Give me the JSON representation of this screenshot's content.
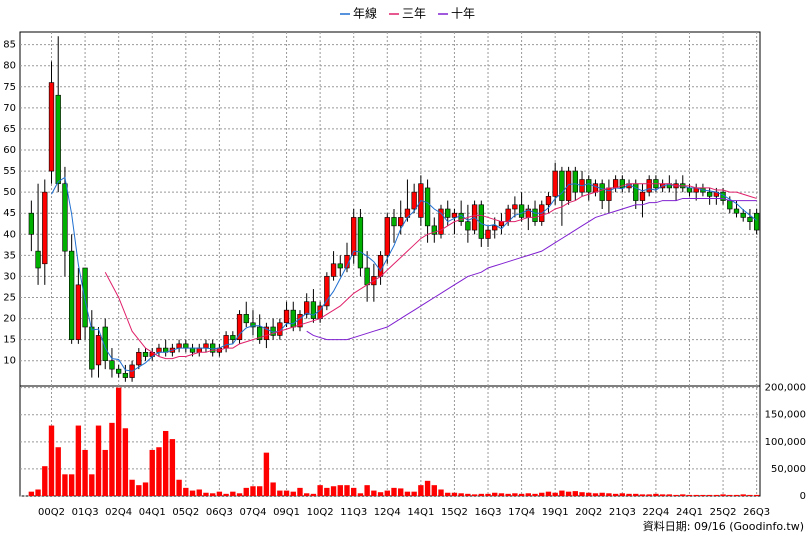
{
  "chart_data": {
    "type": "candlestick",
    "legend": "top",
    "grid": true,
    "up_color": "#ff0000",
    "down_color": "#00b000",
    "footer": "資料日期: 09/16 (Goodinfo.tw)",
    "categories": [
      null,
      null,
      null,
      "00Q2",
      null,
      null,
      null,
      null,
      "01Q3",
      null,
      null,
      null,
      null,
      "02Q4",
      null,
      null,
      null,
      null,
      "04Q1",
      null,
      null,
      null,
      null,
      "05Q2",
      null,
      null,
      null,
      null,
      "06Q3",
      null,
      null,
      null,
      null,
      "07Q4",
      null,
      null,
      null,
      null,
      "09Q1",
      null,
      null,
      null,
      null,
      "10Q2",
      null,
      null,
      null,
      null,
      "11Q3",
      null,
      null,
      null,
      null,
      "12Q4",
      null,
      null,
      null,
      null,
      "14Q1",
      null,
      null,
      null,
      null,
      "15Q2",
      null,
      null,
      null,
      null,
      "16Q3",
      null,
      null,
      null,
      null,
      "17Q4",
      null,
      null,
      null,
      null,
      "19Q1",
      null,
      null,
      null,
      null,
      "20Q2",
      null,
      null,
      null,
      null,
      "21Q3",
      null,
      null,
      null,
      null,
      "22Q4",
      null,
      null,
      null,
      null,
      "24Q1",
      null,
      null,
      null,
      null,
      "25Q2",
      null,
      null,
      null,
      null,
      "26Q3"
    ],
    "ylim": [
      4,
      88
    ],
    "yticks": [
      10,
      15,
      20,
      25,
      30,
      35,
      40,
      45,
      50,
      55,
      60,
      65,
      70,
      75,
      80,
      85
    ],
    "ohlc": [
      [
        45,
        48,
        36,
        40
      ],
      [
        36,
        52,
        28,
        32
      ],
      [
        33,
        53,
        28,
        50
      ],
      [
        55,
        81,
        52,
        76
      ],
      [
        73,
        87,
        50,
        52
      ],
      [
        52,
        56,
        30,
        36
      ],
      [
        36,
        40,
        14,
        15
      ],
      [
        15,
        32,
        14,
        28
      ],
      [
        32,
        32,
        15,
        18
      ],
      [
        18,
        22,
        6,
        8
      ],
      [
        9,
        18,
        6,
        16
      ],
      [
        18,
        20,
        8,
        10
      ],
      [
        10,
        13,
        6,
        8
      ],
      [
        8,
        9,
        6,
        7
      ],
      [
        7,
        9,
        5,
        6
      ],
      [
        6,
        10,
        5,
        9
      ],
      [
        9,
        13,
        8,
        12
      ],
      [
        12,
        13,
        10,
        11
      ],
      [
        11,
        13,
        10,
        12
      ],
      [
        12,
        14,
        11,
        13
      ],
      [
        13,
        15,
        11,
        12
      ],
      [
        12,
        14,
        11,
        13
      ],
      [
        13,
        15,
        12,
        14
      ],
      [
        14,
        15,
        12,
        13
      ],
      [
        13,
        14,
        11,
        12
      ],
      [
        12,
        14,
        11,
        13
      ],
      [
        13,
        15,
        12,
        14
      ],
      [
        14,
        15,
        11,
        12
      ],
      [
        12,
        14,
        11,
        13
      ],
      [
        13,
        17,
        12,
        16
      ],
      [
        16,
        17,
        14,
        15
      ],
      [
        15,
        22,
        14,
        21
      ],
      [
        21,
        24,
        18,
        19
      ],
      [
        19,
        22,
        16,
        18
      ],
      [
        18,
        21,
        14,
        15
      ],
      [
        15,
        19,
        13,
        18
      ],
      [
        18,
        20,
        15,
        16
      ],
      [
        16,
        20,
        15,
        19
      ],
      [
        19,
        24,
        18,
        22
      ],
      [
        22,
        24,
        17,
        18
      ],
      [
        18,
        22,
        17,
        21
      ],
      [
        21,
        26,
        20,
        24
      ],
      [
        24,
        27,
        19,
        20
      ],
      [
        20,
        24,
        19,
        23
      ],
      [
        23,
        31,
        22,
        30
      ],
      [
        30,
        36,
        29,
        33
      ],
      [
        33,
        35,
        30,
        32
      ],
      [
        32,
        38,
        31,
        35
      ],
      [
        35,
        46,
        33,
        44
      ],
      [
        44,
        46,
        30,
        32
      ],
      [
        32,
        36,
        24,
        28
      ],
      [
        28,
        33,
        24,
        30
      ],
      [
        30,
        36,
        28,
        35
      ],
      [
        35,
        45,
        33,
        44
      ],
      [
        44,
        46,
        38,
        42
      ],
      [
        42,
        48,
        40,
        44
      ],
      [
        44,
        53,
        43,
        46
      ],
      [
        46,
        52,
        45,
        50
      ],
      [
        44,
        54,
        42,
        52
      ],
      [
        51,
        53,
        38,
        42
      ],
      [
        42,
        44,
        38,
        40
      ],
      [
        40,
        47,
        39,
        46
      ],
      [
        46,
        48,
        42,
        44
      ],
      [
        44,
        46,
        40,
        45
      ],
      [
        45,
        48,
        42,
        43
      ],
      [
        43,
        47,
        38,
        41
      ],
      [
        41,
        48,
        40,
        47
      ],
      [
        47,
        48,
        37,
        39
      ],
      [
        39,
        42,
        37,
        41
      ],
      [
        41,
        44,
        39,
        42
      ],
      [
        42,
        45,
        40,
        43
      ],
      [
        43,
        47,
        42,
        46
      ],
      [
        46,
        49,
        44,
        47
      ],
      [
        47,
        50,
        43,
        44
      ],
      [
        44,
        47,
        41,
        46
      ],
      [
        46,
        48,
        42,
        43
      ],
      [
        43,
        48,
        42,
        47
      ],
      [
        47,
        50,
        45,
        49
      ],
      [
        49,
        57,
        47,
        55
      ],
      [
        55,
        56,
        42,
        48
      ],
      [
        48,
        56,
        47,
        55
      ],
      [
        55,
        56,
        48,
        50
      ],
      [
        50,
        55,
        49,
        53
      ],
      [
        53,
        54,
        48,
        50
      ],
      [
        50,
        53,
        49,
        52
      ],
      [
        52,
        53,
        46,
        48
      ],
      [
        48,
        53,
        45,
        51
      ],
      [
        51,
        54,
        50,
        53
      ],
      [
        53,
        54,
        50,
        51
      ],
      [
        51,
        53,
        50,
        52
      ],
      [
        52,
        53,
        46,
        48
      ],
      [
        48,
        52,
        44,
        50
      ],
      [
        50,
        54,
        49,
        53
      ],
      [
        53,
        54,
        50,
        51
      ],
      [
        51,
        53,
        50,
        52
      ],
      [
        52,
        54,
        50,
        51
      ],
      [
        51,
        53,
        48,
        52
      ],
      [
        52,
        54,
        50,
        51
      ],
      [
        51,
        52,
        49,
        50
      ],
      [
        50,
        52,
        48,
        51
      ],
      [
        51,
        52,
        49,
        50
      ],
      [
        50,
        51,
        47,
        49
      ],
      [
        49,
        51,
        47,
        50
      ],
      [
        50,
        51,
        47,
        48
      ],
      [
        48,
        49,
        45,
        46
      ],
      [
        46,
        48,
        44,
        45
      ],
      [
        45,
        46,
        43,
        44
      ],
      [
        44,
        46,
        41,
        43
      ],
      [
        45,
        46,
        40,
        41
      ]
    ],
    "volume": {
      "color": "#ff0000",
      "ylim": [
        0,
        203000
      ],
      "yticks": [
        0,
        {
          "value": 50000,
          "label": "50,000"
        },
        {
          "value": 100000,
          "label": "100,000"
        },
        {
          "value": 150000,
          "label": "150,000"
        },
        {
          "value": 200000,
          "label": "200,000"
        }
      ],
      "values": [
        8000,
        12000,
        55000,
        130000,
        90000,
        40000,
        40000,
        130000,
        85000,
        40000,
        130000,
        85000,
        135000,
        200000,
        125000,
        30000,
        20000,
        25000,
        85000,
        90000,
        120000,
        105000,
        30000,
        15000,
        10000,
        12000,
        6000,
        5000,
        8000,
        4000,
        8000,
        5000,
        15000,
        18000,
        18000,
        80000,
        25000,
        10000,
        10000,
        8000,
        15000,
        5000,
        4000,
        20000,
        15000,
        18000,
        20000,
        20000,
        15000,
        5000,
        20000,
        10000,
        7000,
        10000,
        15000,
        14000,
        8000,
        8000,
        20000,
        28000,
        20000,
        12000,
        6000,
        6000,
        5000,
        4000,
        3000,
        4000,
        4000,
        6000,
        5000,
        4000,
        5000,
        4000,
        5000,
        4000,
        6000,
        8000,
        6000,
        10000,
        8000,
        9000,
        7000,
        6000,
        5000,
        6000,
        5000,
        4000,
        5000,
        4000,
        4000,
        3000,
        3000,
        4000,
        3000,
        3000,
        2000,
        3000,
        2000,
        2000,
        2000,
        2000,
        2000,
        3000,
        2000,
        2000,
        3000,
        2000,
        2000
      ]
    },
    "series": [
      {
        "name": "年線",
        "color": "#1f6fd0",
        "values": [
          null,
          null,
          null,
          49.5,
          52.5,
          53.5,
          44.8,
          32.8,
          24.3,
          17.3,
          17.5,
          13,
          10.5,
          10.3,
          7.8,
          7.5,
          8.5,
          9.5,
          11,
          12,
          12,
          12.5,
          13,
          13,
          13,
          13,
          13,
          12.8,
          13,
          13.8,
          14,
          16.3,
          17.8,
          18.3,
          18.3,
          17.5,
          16.8,
          17,
          18.8,
          18.8,
          20,
          21.3,
          20.8,
          22,
          24.3,
          26.5,
          29.5,
          32.5,
          36,
          35.8,
          34.8,
          33.5,
          31.3,
          34.3,
          37.3,
          41.3,
          44,
          45.5,
          48,
          47.5,
          46,
          45,
          43,
          43.8,
          44.5,
          43.3,
          44,
          42.5,
          42,
          42.3,
          41.3,
          43,
          44.5,
          45,
          45.8,
          45,
          45,
          46.3,
          48.5,
          49.8,
          51.8,
          52,
          51.5,
          52,
          51.3,
          50.8,
          50.3,
          51,
          50.8,
          51.8,
          51,
          50.3,
          50.8,
          50.5,
          51.5,
          51.8,
          51.5,
          51.5,
          51,
          51,
          50.5,
          50.3,
          50,
          49.3,
          48.3,
          47.3,
          45.8,
          44.5,
          43.3
        ]
      },
      {
        "name": "三年",
        "color": "#e0206a",
        "values": [
          null,
          null,
          null,
          null,
          null,
          null,
          null,
          null,
          null,
          null,
          null,
          31,
          28,
          25,
          21,
          17,
          15,
          13,
          12,
          11,
          10.5,
          10.5,
          11,
          11,
          11.5,
          12,
          12,
          12.5,
          12.5,
          13,
          13,
          14,
          14.5,
          15,
          15.5,
          16,
          16.5,
          17,
          17.5,
          18,
          18.5,
          19,
          19.5,
          20,
          21,
          22,
          23,
          24.5,
          26,
          27,
          28,
          29,
          30,
          31.5,
          33,
          34.5,
          36,
          37.5,
          39,
          40,
          40.5,
          41,
          42,
          43,
          43.5,
          44,
          44.5,
          44.5,
          44,
          43.5,
          43,
          43,
          43,
          43.5,
          44,
          44,
          44.5,
          45,
          46,
          46.5,
          47.5,
          48,
          49,
          49.5,
          50,
          50.5,
          51,
          51,
          51.5,
          52,
          52,
          52,
          52,
          52,
          52,
          52,
          51.5,
          51.5,
          51.5,
          51,
          51,
          51,
          50.5,
          50.5,
          50,
          50,
          49.5,
          49,
          48.5
        ]
      },
      {
        "name": "十年",
        "color": "#8020d0",
        "values": [
          null,
          null,
          null,
          null,
          null,
          null,
          null,
          null,
          null,
          null,
          null,
          null,
          null,
          null,
          null,
          null,
          null,
          null,
          null,
          null,
          null,
          null,
          null,
          null,
          null,
          null,
          null,
          null,
          null,
          null,
          null,
          null,
          null,
          null,
          null,
          null,
          null,
          null,
          null,
          null,
          null,
          17,
          16,
          15.5,
          15,
          15,
          15,
          15,
          15.5,
          16,
          16.5,
          17,
          17.5,
          18,
          19,
          20,
          21,
          22,
          23,
          24,
          25,
          26,
          27,
          28,
          29,
          30,
          30.5,
          31,
          32,
          32.5,
          33,
          33.5,
          34,
          34.5,
          35,
          35.5,
          36,
          37,
          38,
          39,
          40,
          41,
          42,
          43,
          44,
          44.5,
          45,
          45.5,
          46,
          46.5,
          47,
          47,
          47.5,
          47.5,
          48,
          48,
          48,
          48.5,
          48.5,
          48.5,
          48.5,
          48.5,
          48.5,
          48.5,
          48,
          48,
          48,
          48,
          48
        ]
      }
    ]
  }
}
